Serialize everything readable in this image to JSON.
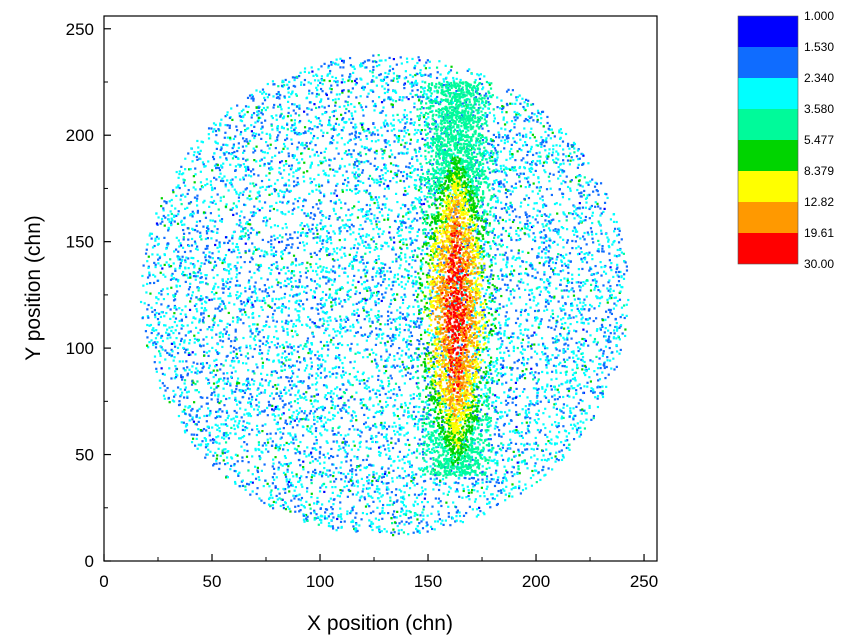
{
  "chart_data": {
    "type": "heatmap",
    "title": "",
    "xlabel": "X position (chn)",
    "ylabel": "Y position (chn)",
    "xlim": [
      0,
      256
    ],
    "ylim": [
      0,
      256
    ],
    "xticks": [
      "0",
      "50",
      "100",
      "150",
      "200",
      "250"
    ],
    "yticks": [
      "0",
      "50",
      "100",
      "150",
      "200",
      "250"
    ],
    "grid": false,
    "legend_position": "top-right",
    "colorbar": {
      "labels": [
        "1.000",
        "1.530",
        "2.340",
        "3.580",
        "5.477",
        "8.379",
        "12.82",
        "19.61",
        "30.00"
      ],
      "colors": [
        "#0000ff",
        "#0f6cff",
        "#00ffff",
        "#00fa9a",
        "#00d400",
        "#ffff00",
        "#ff9900",
        "#ff0000"
      ]
    },
    "distribution": {
      "shape": "disk",
      "center": [
        130,
        125
      ],
      "radius": 113,
      "background_levels": [
        1.5,
        3.6
      ],
      "hotspot_band": {
        "x_center": 163,
        "x_halfwidth": 20,
        "y_range": [
          40,
          225
        ],
        "peak_level": 30
      }
    }
  }
}
